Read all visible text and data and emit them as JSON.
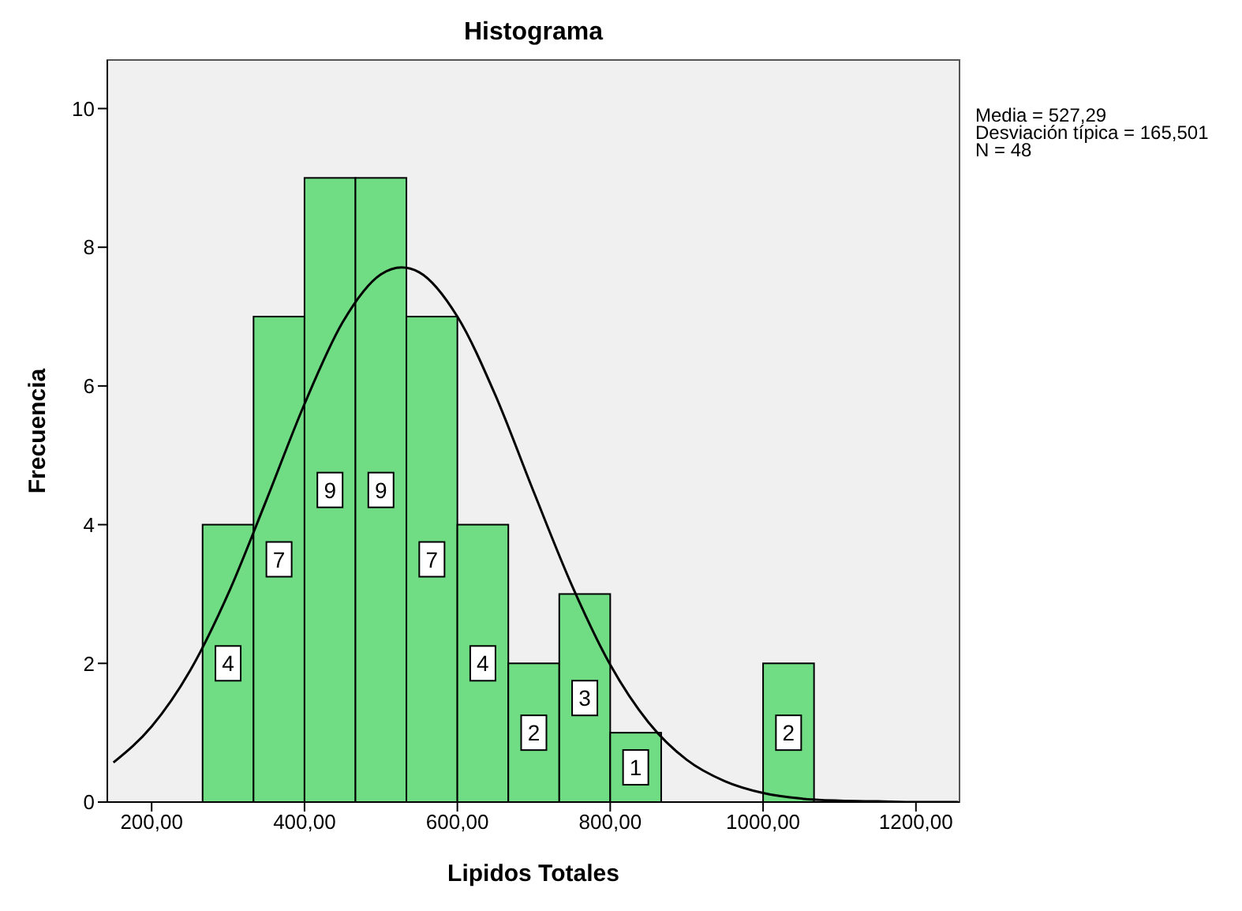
{
  "chart_data": {
    "type": "histogram",
    "title": "Histograma",
    "xlabel": "Lipidos Totales",
    "ylabel": "Frecuencia",
    "bins": [
      266.67,
      333.33,
      400,
      466.67,
      533.33,
      600,
      666.67,
      733.33,
      800,
      866.67,
      933.33,
      1000,
      1066.67
    ],
    "values": [
      4,
      7,
      9,
      9,
      7,
      4,
      2,
      3,
      1,
      0,
      0,
      2
    ],
    "value_labels": [
      "4",
      "7",
      "9",
      "9",
      "7",
      "4",
      "2",
      "3",
      "1",
      null,
      null,
      "2"
    ],
    "color": "#70dc84",
    "series": [
      {
        "type": "line",
        "color": "#000000",
        "x": [
          150,
          200,
          250,
          300,
          350,
          400,
          450,
          500,
          527,
          550,
          600,
          650,
          700,
          750,
          800,
          850,
          900,
          950,
          1000,
          1050,
          1100,
          1150,
          1200,
          1255
        ],
        "values": [
          0.57,
          1.09,
          1.89,
          3.0,
          4.35,
          5.74,
          6.92,
          7.61,
          7.71,
          7.64,
          7.0,
          5.86,
          4.47,
          3.12,
          1.98,
          1.15,
          0.61,
          0.3,
          0.13,
          0.05,
          0.02,
          0.01,
          0,
          0
        ]
      }
    ],
    "xlim": [
      142,
      1257
    ],
    "xticks": [
      {
        "value": 200,
        "label": "200,00"
      },
      {
        "value": 400,
        "label": "400,00"
      },
      {
        "value": 600,
        "label": "600,00"
      },
      {
        "value": 800,
        "label": "800,00"
      },
      {
        "value": 1000,
        "label": "1000,00"
      },
      {
        "value": 1200,
        "label": "1200,00"
      }
    ],
    "ylim": [
      0,
      10.7
    ],
    "yticks": [
      0,
      2,
      4,
      6,
      8,
      10
    ],
    "marker": "none",
    "line_style": "solid",
    "annotations": [
      "Media = 527,29",
      "Desviación típica = 165,501",
      "N = 48"
    ]
  }
}
